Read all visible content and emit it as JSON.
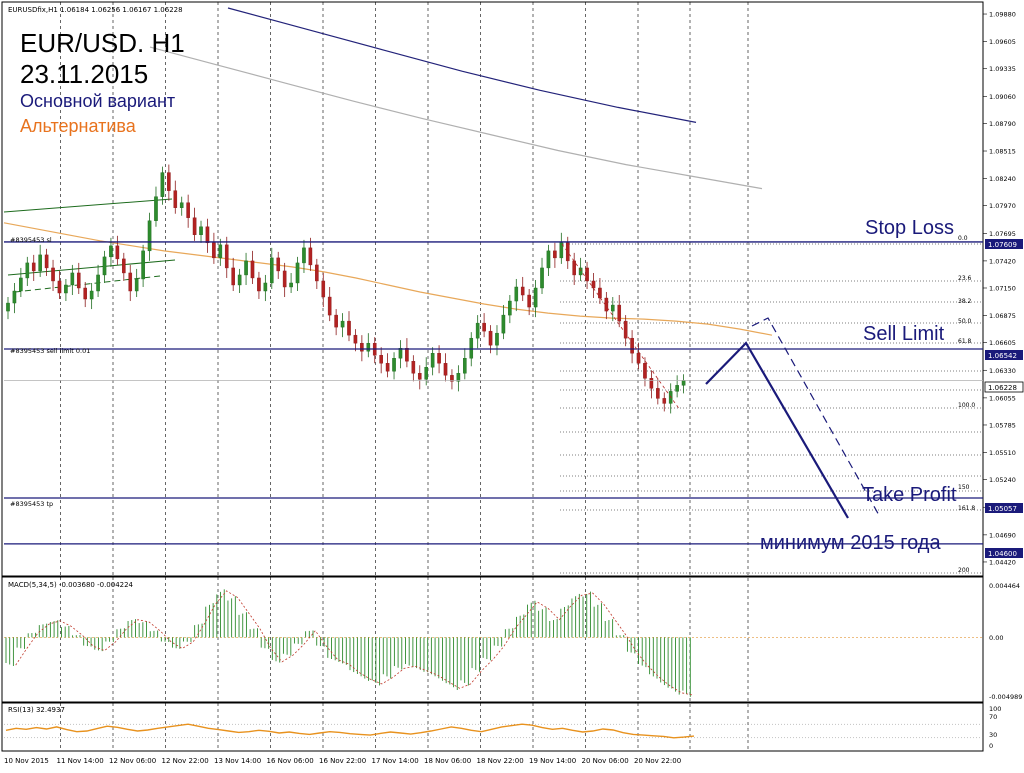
{
  "symbol_header": "EURUSDfix,H1  1.06184 1.06256 1.06167 1.06228",
  "overlay": {
    "title_line1": "EUR/USD. H1",
    "title_line2": "23.11.2015",
    "legend_main": "Основной вариант",
    "legend_alt": "Альтернатива",
    "stop_loss": "Stop Loss",
    "sell_limit": "Sell Limit",
    "take_profit": "Take Profit",
    "min_2015": "минимум 2015 года",
    "main_color": "#1a1a7a",
    "alt_color": "#e8731e"
  },
  "order_labels": {
    "sl": "#8395453 sl",
    "sell_limit": "#8395453 sell limit 0.01",
    "tp": "#8395453 tp"
  },
  "price_boxes": [
    "1.07609",
    "1.06542",
    "1.06228",
    "1.05057",
    "1.04600"
  ],
  "indicator_titles": {
    "macd": "MACD(5,34,5) -0.003680 -0.004224",
    "rsi": "RSI(13) 32.4937"
  },
  "chart_data": [
    {
      "panel": "price",
      "type": "candlestick",
      "y_ticks": [
        "1.09880",
        "1.09605",
        "1.09335",
        "1.09060",
        "1.08790",
        "1.08515",
        "1.08240",
        "1.07970",
        "1.07695",
        "1.07420",
        "1.07150",
        "1.06875",
        "1.06605",
        "1.06330",
        "1.06055",
        "1.05785",
        "1.05510",
        "1.05240",
        "1.04965",
        "1.04690",
        "1.04420"
      ],
      "ylim": [
        1.043,
        1.0996
      ],
      "x_ticks": [
        "10 Nov 2015",
        "11 Nov 14:00",
        "12 Nov 06:00",
        "12 Nov 22:00",
        "13 Nov 14:00",
        "16 Nov 06:00",
        "16 Nov 22:00",
        "17 Nov 14:00",
        "18 Nov 06:00",
        "18 Nov 22:00",
        "19 Nov 14:00",
        "20 Nov 06:00",
        "20 Nov 22:00"
      ],
      "levels": {
        "stop_loss": 1.07609,
        "sell_limit": 1.06542,
        "last": 1.06228,
        "take_profit": 1.05057,
        "min_2015": 1.046
      },
      "fibonacci_labels": [
        "0.0",
        "23.6",
        "38.2",
        "50.0",
        "61.8",
        "100.0",
        "150",
        "161.8",
        "200"
      ],
      "closes": [
        1.07,
        1.0712,
        1.0725,
        1.074,
        1.0732,
        1.0748,
        1.0735,
        1.0722,
        1.071,
        1.0718,
        1.073,
        1.0715,
        1.0704,
        1.0712,
        1.0728,
        1.0746,
        1.0757,
        1.0744,
        1.073,
        1.0712,
        1.0724,
        1.0752,
        1.0782,
        1.0806,
        1.083,
        1.0812,
        1.0795,
        1.08,
        1.0785,
        1.0768,
        1.0776,
        1.076,
        1.0745,
        1.0758,
        1.0735,
        1.0718,
        1.0728,
        1.0742,
        1.0725,
        1.0712,
        1.072,
        1.0745,
        1.0732,
        1.0716,
        1.072,
        1.074,
        1.0755,
        1.0738,
        1.0722,
        1.0706,
        1.0688,
        1.0676,
        1.0682,
        1.0668,
        1.066,
        1.0652,
        1.066,
        1.0648,
        1.064,
        1.0632,
        1.0645,
        1.0655,
        1.0642,
        1.063,
        1.0624,
        1.0636,
        1.065,
        1.064,
        1.0628,
        1.0622,
        1.063,
        1.0645,
        1.0665,
        1.068,
        1.0672,
        1.0658,
        1.067,
        1.0688,
        1.0702,
        1.0716,
        1.0708,
        1.0696,
        1.0715,
        1.0735,
        1.0752,
        1.0745,
        1.076,
        1.0742,
        1.0728,
        1.0735,
        1.0722,
        1.0715,
        1.0705,
        1.0692,
        1.0698,
        1.0682,
        1.0665,
        1.065,
        1.064,
        1.0625,
        1.0615,
        1.0605,
        1.06,
        1.0612,
        1.0618,
        1.0623
      ],
      "ma_orange": [
        1.078,
        1.0774,
        1.0768,
        1.0762,
        1.0757,
        1.0752,
        1.0748,
        1.0744,
        1.074,
        1.0736,
        1.0731,
        1.0725,
        1.0718,
        1.0711,
        1.0705,
        1.0699,
        1.0694,
        1.069,
        1.0687,
        1.0685,
        1.0684,
        1.0682,
        1.0679,
        1.0674,
        1.0668
      ],
      "ma_navy": [
        1.0994,
        1.0973,
        1.0952,
        1.0931,
        1.0912,
        1.0895,
        1.088
      ],
      "ma_gray": [
        1.0955,
        1.0937,
        1.0919,
        1.0901,
        1.0884,
        1.0868,
        1.0852,
        1.0838,
        1.0826,
        1.0814
      ]
    },
    {
      "panel": "macd",
      "type": "bar",
      "y_ticks": [
        "0.004464",
        "0.00",
        "-0.004989"
      ],
      "ylim": [
        -0.0052,
        0.0046
      ],
      "values": [
        -0.0025,
        -0.001,
        0.0004,
        0.0012,
        0.0015,
        0.001,
        0.0002,
        -0.0008,
        -0.0012,
        -0.0004,
        0.0008,
        0.0016,
        0.0014,
        0.0006,
        -0.0004,
        -0.001,
        -0.0004,
        0.0012,
        0.003,
        0.0042,
        0.0036,
        0.0022,
        0.0008,
        -0.001,
        -0.0022,
        -0.0016,
        -0.0006,
        0.0006,
        -0.0008,
        -0.002,
        -0.0024,
        -0.0032,
        -0.0038,
        -0.0042,
        -0.0036,
        -0.0028,
        -0.0026,
        -0.003,
        -0.0034,
        -0.004,
        -0.0046,
        -0.0042,
        -0.003,
        -0.002,
        -0.0008,
        0.0008,
        0.002,
        0.0032,
        0.0026,
        0.0016,
        0.0028,
        0.0038,
        0.004,
        0.003,
        0.0016,
        0.0002,
        -0.0014,
        -0.0026,
        -0.0036,
        -0.0044,
        -0.005,
        -0.0052
      ]
    },
    {
      "panel": "rsi",
      "type": "line",
      "y_ticks": [
        "100",
        "70",
        "30",
        "0"
      ],
      "ylim": [
        0,
        100
      ],
      "values": [
        52,
        58,
        55,
        60,
        56,
        62,
        54,
        48,
        50,
        57,
        64,
        61,
        55,
        50,
        53,
        58,
        62,
        66,
        70,
        64,
        58,
        54,
        50,
        46,
        48,
        52,
        49,
        44,
        47,
        43,
        40,
        44,
        48,
        46,
        42,
        40,
        38,
        43,
        47,
        44,
        41,
        45,
        50,
        56,
        62,
        58,
        52,
        48,
        55,
        62,
        66,
        70,
        67,
        60,
        55,
        58,
        52,
        47,
        50,
        56,
        53,
        45,
        40,
        38,
        36,
        34,
        30,
        32,
        35
      ]
    }
  ]
}
